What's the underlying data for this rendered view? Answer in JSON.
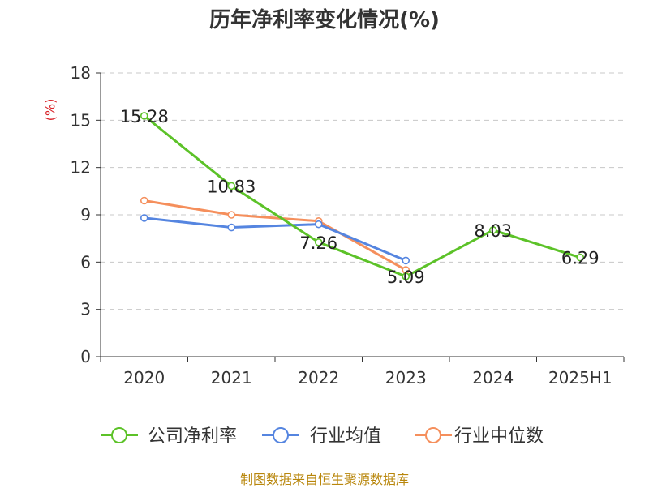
{
  "chart_data": {
    "type": "line",
    "title": "历年净利率变化情况(%)",
    "unit_label": "(%)",
    "categories": [
      "2020",
      "2021",
      "2022",
      "2023",
      "2024",
      "2025H1"
    ],
    "ylim": [
      0,
      18
    ],
    "yticks": [
      0,
      3,
      6,
      9,
      12,
      15,
      18
    ],
    "grid": true,
    "legend_position": "bottom",
    "series": [
      {
        "name": "公司净利率",
        "color": "#5cc228",
        "values": [
          15.28,
          10.83,
          7.26,
          5.09,
          8.03,
          6.29
        ],
        "labels": [
          "15.28",
          "10.83",
          "7.26",
          "5.09",
          "8.03",
          "6.29"
        ]
      },
      {
        "name": "行业均值",
        "color": "#5585e0",
        "values": [
          8.8,
          8.2,
          8.4,
          6.1,
          null,
          null
        ]
      },
      {
        "name": "行业中位数",
        "color": "#f58f5c",
        "values": [
          9.9,
          9.0,
          8.6,
          5.5,
          null,
          null
        ]
      }
    ]
  },
  "source_text": "制图数据来自恒生聚源数据库"
}
